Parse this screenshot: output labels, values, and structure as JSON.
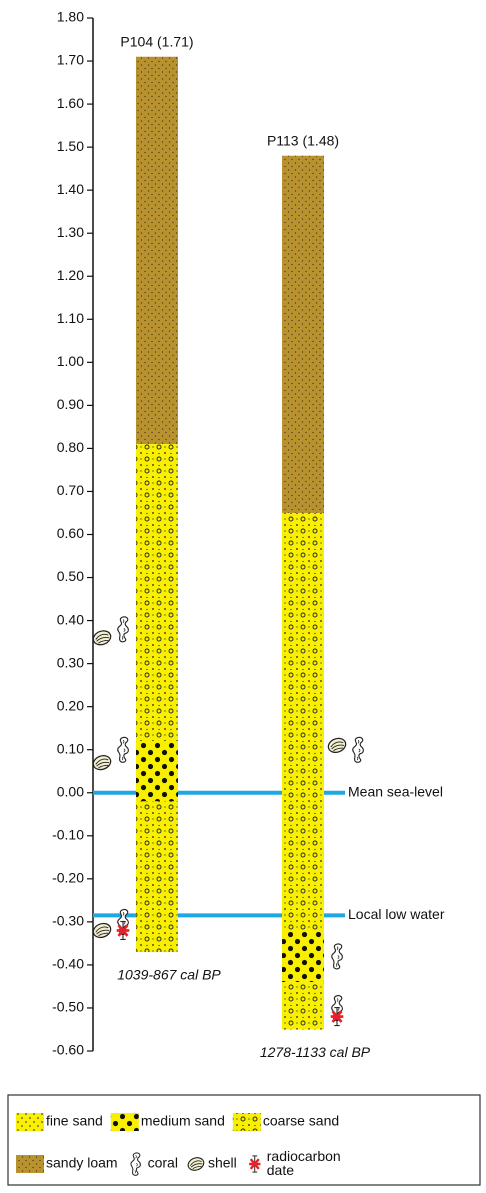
{
  "chart_data": {
    "type": "stratigraphic-column",
    "ylim": [
      -0.6,
      1.8
    ],
    "yticks": [
      {
        "value": 1.8,
        "label": "1.80"
      },
      {
        "value": 1.7,
        "label": "1.70"
      },
      {
        "value": 1.6,
        "label": "1.60"
      },
      {
        "value": 1.5,
        "label": "1.50"
      },
      {
        "value": 1.4,
        "label": "1.40"
      },
      {
        "value": 1.3,
        "label": "1.30"
      },
      {
        "value": 1.2,
        "label": "1.20"
      },
      {
        "value": 1.1,
        "label": "1.10"
      },
      {
        "value": 1.0,
        "label": "1.00"
      },
      {
        "value": 0.9,
        "label": "0.90"
      },
      {
        "value": 0.8,
        "label": "0.80"
      },
      {
        "value": 0.7,
        "label": "0.70"
      },
      {
        "value": 0.6,
        "label": "0.60"
      },
      {
        "value": 0.5,
        "label": "0.50"
      },
      {
        "value": 0.4,
        "label": "0.40"
      },
      {
        "value": 0.3,
        "label": "0.30"
      },
      {
        "value": 0.2,
        "label": "0.20"
      },
      {
        "value": 0.1,
        "label": "0.10"
      },
      {
        "value": 0,
        "label": "0.00"
      },
      {
        "value": -0.1,
        "label": "-0.10"
      },
      {
        "value": -0.2,
        "label": "-0.20"
      },
      {
        "value": -0.3,
        "label": "-0.30"
      },
      {
        "value": -0.4,
        "label": "-0.40"
      },
      {
        "value": -0.5,
        "label": "-0.50"
      },
      {
        "value": -0.6,
        "label": "-0.60"
      }
    ],
    "reference_lines": [
      {
        "label": "Mean sea-level",
        "value": 0,
        "color": "#1ea7e1"
      },
      {
        "label": "Local low water",
        "value": -0.285,
        "color": "#1ea7e1"
      }
    ],
    "columns": [
      {
        "name": "P104 (1.71)",
        "date": "1039-867 cal BP",
        "layers": [
          {
            "lithology": "sandy loam",
            "top": 1.71,
            "bottom": 0.81
          },
          {
            "lithology": "coarse sand",
            "top": 0.81,
            "bottom": 0.12
          },
          {
            "lithology": "medium sand",
            "top": 0.12,
            "bottom": -0.02
          },
          {
            "lithology": "coarse sand",
            "top": -0.02,
            "bottom": -0.37
          }
        ],
        "markers": [
          {
            "symbol": "coral",
            "depth": 0.38,
            "side": "left"
          },
          {
            "symbol": "shell",
            "depth": 0.36,
            "side": "left"
          },
          {
            "symbol": "coral",
            "depth": 0.1,
            "side": "left"
          },
          {
            "symbol": "shell",
            "depth": 0.07,
            "side": "left"
          },
          {
            "symbol": "coral",
            "depth": -0.3,
            "side": "left"
          },
          {
            "symbol": "shell",
            "depth": -0.32,
            "side": "left"
          },
          {
            "symbol": "radiocarbon date",
            "depth": -0.32,
            "side": "left"
          }
        ]
      },
      {
        "name": "P113 (1.48)",
        "date": "1278-1133 cal BP",
        "layers": [
          {
            "lithology": "sandy loam",
            "top": 1.48,
            "bottom": 0.65
          },
          {
            "lithology": "coarse sand",
            "top": 0.65,
            "bottom": -0.32
          },
          {
            "lithology": "medium sand",
            "top": -0.32,
            "bottom": -0.44
          },
          {
            "lithology": "coarse sand",
            "top": -0.44,
            "bottom": -0.55
          }
        ],
        "markers": [
          {
            "symbol": "shell",
            "depth": 0.11,
            "side": "right"
          },
          {
            "symbol": "coral",
            "depth": 0.1,
            "side": "right"
          },
          {
            "symbol": "coral",
            "depth": -0.38,
            "side": "right"
          },
          {
            "symbol": "coral",
            "depth": -0.5,
            "side": "right"
          },
          {
            "symbol": "radiocarbon date",
            "depth": -0.52,
            "side": "right"
          }
        ]
      }
    ],
    "legend": [
      {
        "label": "fine sand",
        "color": "#f8f000",
        "texture": "fine-dots"
      },
      {
        "label": "medium sand",
        "color": "#f8f000",
        "texture": "large-dots"
      },
      {
        "label": "coarse sand",
        "color": "#f8f000",
        "texture": "circles-dots"
      },
      {
        "label": "sandy loam",
        "color": "#b8922e",
        "texture": "speckle"
      },
      {
        "label": "coral",
        "symbol": "coral"
      },
      {
        "label": "shell",
        "symbol": "shell"
      },
      {
        "label": "radiocarbon date",
        "color": "#e8202a",
        "symbol": "asterisk"
      }
    ]
  }
}
